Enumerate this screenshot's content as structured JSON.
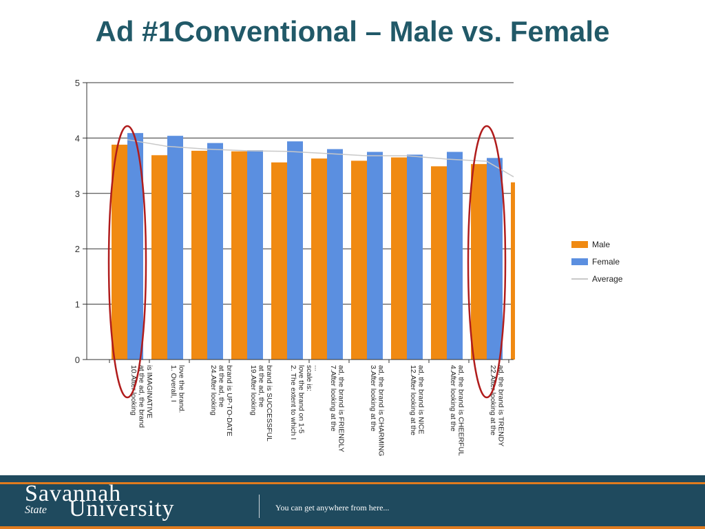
{
  "slide": {
    "title": "Ad #1Conventional – Male vs. Female"
  },
  "footer": {
    "logo_line1": "Savannah",
    "logo_state": "State",
    "logo_line2": "University",
    "tagline": "You can get anywhere from here..."
  },
  "colors": {
    "male": "#f08a12",
    "female": "#5b8fe0",
    "average": "#c8c8c8",
    "highlight": "#b01c1c",
    "title": "#215968"
  },
  "chart_data": {
    "type": "bar",
    "ylim": [
      0,
      5
    ],
    "yticks": [
      "0",
      "1",
      "2",
      "3",
      "4",
      "5"
    ],
    "grid": true,
    "legend_position": "right",
    "categories": [
      [
        "10.After looking",
        "at the ad, the brand",
        "is IMAGINATIVE"
      ],
      [
        "1. Overall, I",
        "love the brand."
      ],
      [
        "24.After looking",
        "at the ad, the",
        "brand is UP-TO-DATE"
      ],
      [
        "19.After looking",
        "at the ad, the",
        "brand is SUCCESSFUL"
      ],
      [
        "2. The extent to which I",
        "love the brand on 1-5",
        "scale is:",
        "..."
      ],
      [
        "7.After looking at the",
        "ad, the brand is FRIENDLY"
      ],
      [
        "3.After looking at the",
        "ad, the brand is CHARMING"
      ],
      [
        "12.After looking at the",
        "ad, the brand is NICE"
      ],
      [
        "4.After looking at the",
        "ad, the brand is CHEERFUL"
      ],
      [
        "22.After looking at the",
        "ad, the brand is TRENDY"
      ],
      []
    ],
    "series": [
      {
        "name": "Male",
        "type": "bar",
        "values": [
          3.88,
          3.69,
          3.77,
          3.76,
          3.56,
          3.63,
          3.59,
          3.65,
          3.49,
          3.53,
          3.2
        ]
      },
      {
        "name": "Female",
        "type": "bar",
        "values": [
          4.09,
          4.04,
          3.91,
          3.78,
          3.94,
          3.8,
          3.75,
          3.7,
          3.75,
          3.64,
          null
        ]
      },
      {
        "name": "Average",
        "type": "line",
        "values": [
          3.97,
          3.85,
          3.8,
          3.77,
          3.76,
          3.72,
          3.68,
          3.68,
          3.62,
          3.58,
          3.3
        ]
      }
    ],
    "highlighted_categories": [
      0,
      9
    ]
  }
}
